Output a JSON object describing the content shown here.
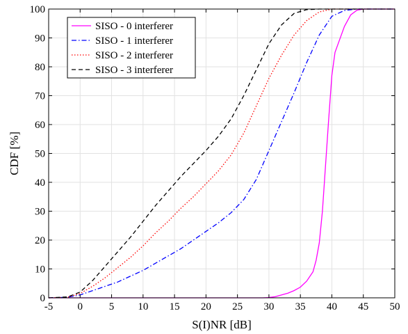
{
  "chart_data": {
    "type": "line",
    "title": "",
    "xlabel": "S(I)NR [dB]",
    "ylabel": "CDF [%]",
    "xlim": [
      -5,
      50
    ],
    "ylim": [
      0,
      100
    ],
    "xticks": [
      -5,
      0,
      5,
      10,
      15,
      20,
      25,
      30,
      35,
      40,
      45,
      50
    ],
    "yticks": [
      0,
      10,
      20,
      30,
      40,
      50,
      60,
      70,
      80,
      90,
      100
    ],
    "grid": true,
    "legend_position": "top-left",
    "series": [
      {
        "name": "SISO - 0 interferer",
        "color": "#ff00ff",
        "dash": "solid",
        "x": [
          -5,
          29,
          30,
          31,
          32,
          33,
          34,
          35,
          36,
          37,
          37.5,
          38,
          38.5,
          39,
          39.5,
          40,
          40.5,
          41,
          42,
          43,
          44,
          45,
          50
        ],
        "y": [
          0,
          0,
          0.1,
          0.4,
          1,
          1.6,
          2.5,
          3.7,
          5.8,
          9,
          13,
          19,
          30,
          46,
          62,
          77,
          85,
          88,
          94,
          98,
          99.6,
          100,
          100
        ]
      },
      {
        "name": "SISO - 1 interferer",
        "color": "#0000ff",
        "dash": "dashdot",
        "x": [
          -5,
          -2,
          0,
          2,
          4,
          6,
          8,
          10,
          12,
          14,
          16,
          18,
          20,
          22,
          24,
          26,
          28,
          30,
          32,
          34,
          36,
          38,
          40,
          42,
          44,
          46,
          50
        ],
        "y": [
          0,
          0.2,
          1,
          2.5,
          4,
          5.5,
          7.5,
          9.5,
          12,
          14.5,
          17,
          20,
          23,
          26,
          29.5,
          34,
          41,
          51,
          61,
          71,
          81.5,
          91,
          97.5,
          99.5,
          100,
          100,
          100
        ]
      },
      {
        "name": "SISO - 2 interferer",
        "color": "#ff0000",
        "dash": "dotted",
        "x": [
          -5,
          -2,
          0,
          2,
          4,
          6,
          8,
          10,
          12,
          14,
          16,
          18,
          20,
          22,
          24,
          26,
          28,
          30,
          32,
          34,
          36,
          38,
          40,
          42,
          44,
          50
        ],
        "y": [
          0,
          0.2,
          1.5,
          4,
          7,
          10.5,
          14,
          18,
          22.5,
          26.5,
          31,
          35,
          39.5,
          44,
          49.5,
          57,
          66.5,
          76,
          84,
          91,
          96,
          99,
          100,
          100,
          100,
          100
        ]
      },
      {
        "name": "SISO - 3 interferer",
        "color": "#000000",
        "dash": "dashed",
        "x": [
          -5,
          -2,
          0,
          2,
          4,
          6,
          8,
          10,
          12,
          14,
          16,
          18,
          20,
          22,
          24,
          26,
          28,
          30,
          32,
          34,
          36,
          38,
          40,
          50
        ],
        "y": [
          0,
          0.3,
          2,
          6,
          11,
          16,
          21,
          26.5,
          32,
          37,
          42,
          46.5,
          51,
          56,
          62,
          70,
          79,
          88,
          94.5,
          98.5,
          99.8,
          100,
          100,
          100
        ]
      }
    ]
  }
}
